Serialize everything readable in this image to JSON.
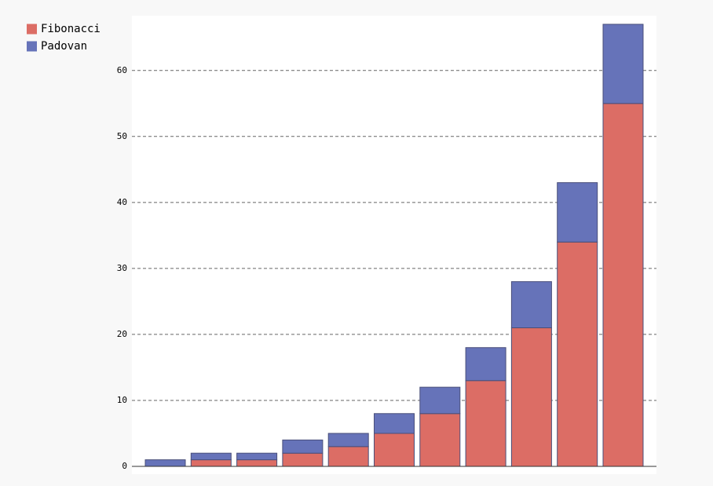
{
  "chart_data": {
    "type": "stacked_bar",
    "series": [
      {
        "name": "Fibonacci",
        "color": "#dc6d65",
        "values": [
          0,
          1,
          1,
          2,
          3,
          5,
          8,
          13,
          21,
          34,
          55
        ]
      },
      {
        "name": "Padovan",
        "color": "#6673b9",
        "values": [
          1,
          1,
          1,
          2,
          2,
          3,
          4,
          5,
          7,
          9,
          12
        ]
      }
    ],
    "ylim": [
      0,
      68.3
    ],
    "yticks": [
      0,
      10,
      20,
      30,
      40,
      50,
      60
    ],
    "grid": true,
    "legend": "top-left"
  }
}
